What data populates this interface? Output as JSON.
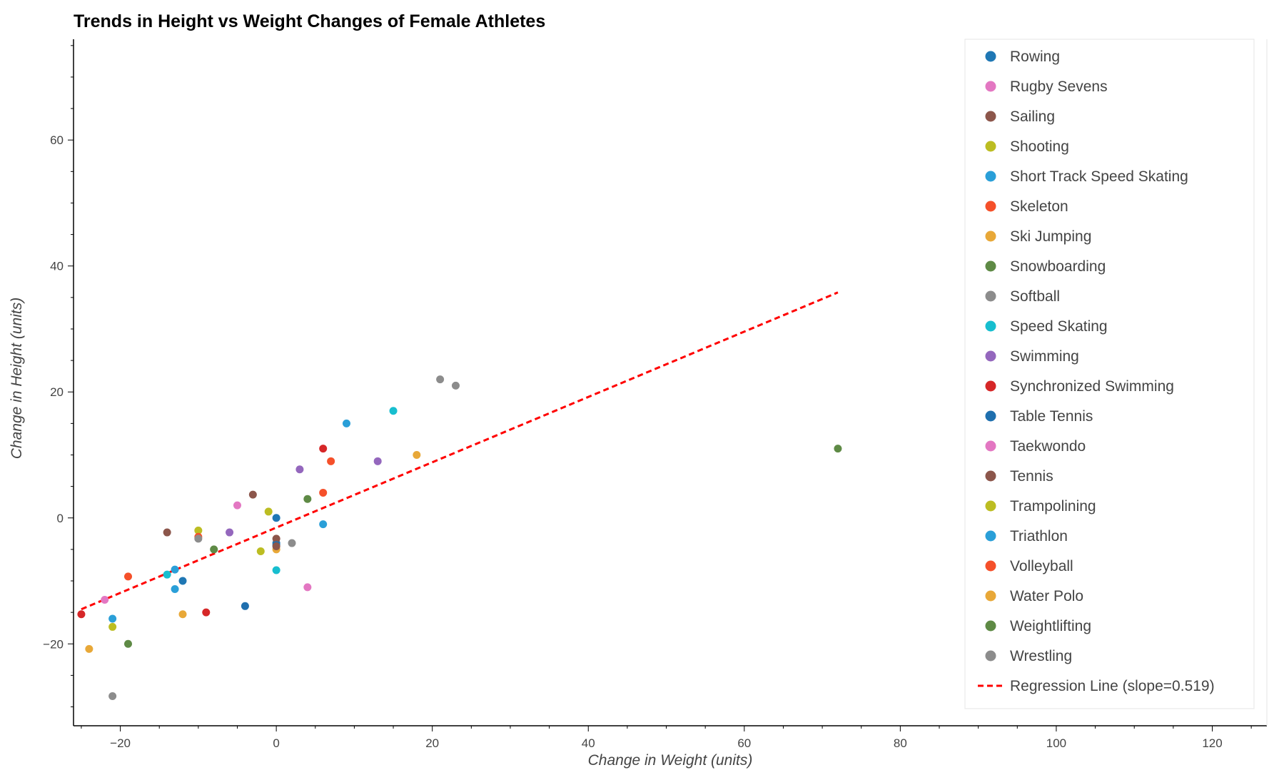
{
  "chart_data": {
    "type": "scatter",
    "title": "Trends in Height vs Weight Changes of Female Athletes",
    "xlabel": "Change in Weight (units)",
    "ylabel": "Change in Height (units)",
    "xlim": [
      -26,
      127
    ],
    "ylim": [
      -33,
      76
    ],
    "x_ticks": [
      -20,
      0,
      20,
      40,
      60,
      80,
      100,
      120
    ],
    "y_ticks": [
      -20,
      0,
      20,
      40,
      60
    ],
    "grid": false,
    "legend_position": "top-right",
    "series": [
      {
        "name": "Rowing",
        "color": "#1f77b4",
        "points": [
          [
            0,
            0
          ],
          [
            0,
            -4
          ],
          [
            -12,
            -10
          ]
        ]
      },
      {
        "name": "Rugby Sevens",
        "color": "#e377c2",
        "points": [
          [
            -5,
            2
          ],
          [
            4,
            -11
          ]
        ]
      },
      {
        "name": "Sailing",
        "color": "#8c564b",
        "points": [
          [
            -3,
            3.7
          ],
          [
            -14,
            -2.3
          ],
          [
            0,
            -3.3
          ]
        ]
      },
      {
        "name": "Shooting",
        "color": "#bcbd22",
        "points": [
          [
            -1,
            1
          ],
          [
            -10,
            -2
          ],
          [
            -2,
            -5.3
          ],
          [
            -21,
            -17.3
          ]
        ]
      },
      {
        "name": "Short Track Speed Skating",
        "color": "#2a9fd8",
        "points": [
          [
            9,
            15
          ],
          [
            6,
            -1
          ],
          [
            -13,
            -8.2
          ],
          [
            -13,
            -11.3
          ],
          [
            -21,
            -16
          ]
        ]
      },
      {
        "name": "Skeleton",
        "color": "#f5502a",
        "points": [
          [
            7,
            9
          ],
          [
            6,
            4
          ],
          [
            -10,
            -3
          ],
          [
            -19,
            -9.3
          ]
        ]
      },
      {
        "name": "Ski Jumping",
        "color": "#e8a838",
        "points": [
          [
            18,
            10
          ],
          [
            0,
            -5
          ],
          [
            -12,
            -15.3
          ],
          [
            -24,
            -20.8
          ]
        ]
      },
      {
        "name": "Snowboarding",
        "color": "#5e8a45",
        "points": [
          [
            4,
            3
          ],
          [
            -8,
            -5
          ],
          [
            -19,
            -20
          ]
        ]
      },
      {
        "name": "Softball",
        "color": "#8c8c8c",
        "points": [
          [
            21,
            22
          ],
          [
            -10,
            -3.3
          ],
          [
            2,
            -4
          ]
        ]
      },
      {
        "name": "Speed Skating",
        "color": "#17becf",
        "points": [
          [
            15,
            17
          ],
          [
            0,
            -8.3
          ],
          [
            -14,
            -9
          ]
        ]
      },
      {
        "name": "Swimming",
        "color": "#9467bd",
        "points": [
          [
            3,
            7.7
          ],
          [
            13,
            9
          ],
          [
            -6,
            -2.3
          ]
        ]
      },
      {
        "name": "Synchronized Swimming",
        "color": "#d62728",
        "points": [
          [
            6,
            11
          ],
          [
            -9,
            -15
          ],
          [
            -25,
            -15.3
          ]
        ]
      },
      {
        "name": "Table Tennis",
        "color": "#1f6fae",
        "points": [
          [
            -4,
            -14
          ],
          [
            0,
            -4.3
          ]
        ]
      },
      {
        "name": "Taekwondo",
        "color": "#e377c2",
        "points": [
          [
            -22,
            -13
          ]
        ]
      },
      {
        "name": "Tennis",
        "color": "#8c564b",
        "points": [
          [
            0,
            -4.5
          ]
        ]
      },
      {
        "name": "Trampolining",
        "color": "#bcbd22",
        "points": []
      },
      {
        "name": "Triathlon",
        "color": "#2a9fd8",
        "points": []
      },
      {
        "name": "Volleyball",
        "color": "#f5502a",
        "points": []
      },
      {
        "name": "Water Polo",
        "color": "#e8a838",
        "points": []
      },
      {
        "name": "Weightlifting",
        "color": "#5e8a45",
        "points": [
          [
            72,
            11
          ]
        ]
      },
      {
        "name": "Wrestling",
        "color": "#8c8c8c",
        "points": [
          [
            23,
            21
          ],
          [
            -21,
            -28.3
          ]
        ]
      }
    ],
    "regression": {
      "name": "Regression Line (slope=0.519)",
      "color": "#ff0000",
      "slope": 0.519,
      "x_range": [
        -25,
        72
      ],
      "y_start": -14.5,
      "y_end": 35.8
    }
  }
}
